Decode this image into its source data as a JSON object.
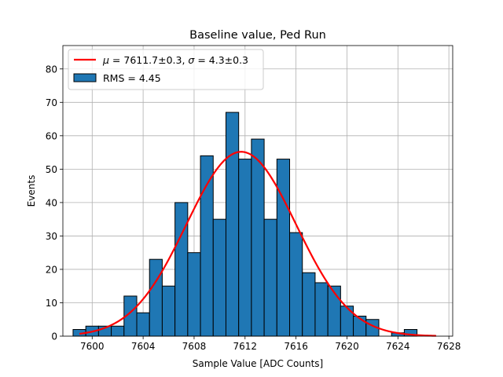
{
  "chart_data": {
    "type": "bar",
    "title": "Baseline value, Ped Run",
    "xlabel": "Sample Value [ADC Counts]",
    "ylabel": "Events",
    "xlim": [
      7597.7,
      7628.3
    ],
    "ylim": [
      0,
      87
    ],
    "xticks": [
      7600,
      7604,
      7608,
      7612,
      7616,
      7620,
      7624,
      7628
    ],
    "yticks": [
      0,
      10,
      20,
      30,
      40,
      50,
      60,
      70,
      80
    ],
    "grid": true,
    "bin_width": 1.0,
    "bin_start": 7598.5,
    "histogram": {
      "name": "RMS = 4.45",
      "values": [
        2,
        3,
        3,
        3,
        12,
        7,
        23,
        15,
        40,
        25,
        54,
        35,
        67,
        53,
        59,
        35,
        53,
        31,
        19,
        16,
        15,
        9,
        6,
        5,
        0,
        1,
        2
      ],
      "color": "#1f77b4",
      "edgecolor": "#000000"
    },
    "fit": {
      "name": "μ = 7611.7±0.3, σ = 4.3±0.3",
      "mu_label": "μ",
      "sigma_label": "σ",
      "mu_text": "7611.7±0.3",
      "sigma_text": "4.3±0.3",
      "mu": 7611.7,
      "sigma": 4.3,
      "amplitude": 55.2,
      "x_range": [
        7599,
        7627
      ],
      "color": "#ff0000"
    },
    "legend": {
      "position": "upper-left",
      "entries": [
        "μ = 7611.7±0.3, σ = 4.3±0.3",
        "RMS = 4.45"
      ]
    }
  }
}
